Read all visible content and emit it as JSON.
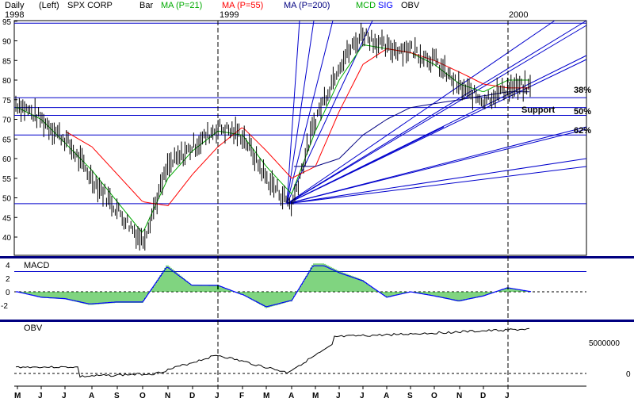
{
  "header": {
    "period": "Daily",
    "scale": "(Left)",
    "symbol": "SPX CORP",
    "chart_style": "Bar",
    "ma1": "MA (P=21)",
    "ma2": "MA (P=55)",
    "ma3": "MA (P=200)",
    "macd": "MCD",
    "sig": "SIG",
    "obv": "OBV",
    "year_1998": "1998",
    "year_1999": "1999",
    "year_2000": "2000"
  },
  "colors": {
    "ma1": "#00aa00",
    "ma2": "#ff0000",
    "ma3": "#000080",
    "line": "#0000cc",
    "macd_bar": "#00aa00",
    "macd_line": "#0000ff",
    "sep": "#000080",
    "price": "#000000"
  },
  "price_panel": {
    "y_ticks": [
      "95",
      "90",
      "85",
      "80",
      "75",
      "70",
      "65",
      "60",
      "55",
      "50",
      "45",
      "40"
    ],
    "fib_labels": [
      "38%",
      "50%",
      "62%"
    ],
    "support_label": "Support"
  },
  "macd_panel": {
    "title": "MACD",
    "y_ticks": [
      "4",
      "2",
      "0",
      "-2"
    ]
  },
  "obv_panel": {
    "title": "OBV",
    "y_ticks": [
      "5000000",
      "0"
    ]
  },
  "x_axis": {
    "months": [
      "M",
      "J",
      "J",
      "A",
      "S",
      "O",
      "N",
      "D",
      "J",
      "F",
      "M",
      "A",
      "M",
      "J",
      "J",
      "A",
      "S",
      "O",
      "N",
      "D",
      "J"
    ]
  },
  "chart_data": {
    "type": "line",
    "title": "SPX CORP",
    "x": [
      "1998-05",
      "1998-06",
      "1998-07",
      "1998-08",
      "1998-09",
      "1998-10",
      "1998-11",
      "1998-12",
      "1999-01",
      "1999-02",
      "1999-03",
      "1999-04",
      "1999-05",
      "1999-06",
      "1999-07",
      "1999-08",
      "1999-09",
      "1999-10",
      "1999-11",
      "1999-12",
      "2000-01"
    ],
    "series": [
      {
        "name": "SPX CORP",
        "values": [
          74,
          70,
          65,
          55,
          47,
          39,
          58,
          63,
          68,
          66,
          55,
          48,
          70,
          84,
          92,
          88,
          88,
          85,
          78,
          75,
          78
        ]
      },
      {
        "name": "MA (P=21)",
        "values": [
          73,
          70,
          64,
          57,
          49,
          41,
          55,
          62,
          67,
          66,
          58,
          51,
          67,
          80,
          89,
          88,
          87,
          84,
          79,
          77,
          80
        ]
      },
      {
        "name": "MA (P=55)",
        "values": [
          null,
          null,
          67,
          63,
          56,
          49,
          48,
          56,
          63,
          68,
          62,
          55,
          58,
          72,
          84,
          88,
          87,
          85,
          82,
          79,
          78
        ]
      },
      {
        "name": "MA (P=200)",
        "values": [
          null,
          null,
          null,
          null,
          null,
          null,
          null,
          null,
          null,
          null,
          null,
          58,
          58,
          60,
          66,
          70,
          73,
          74,
          75,
          76,
          77
        ]
      }
    ],
    "horizontal_levels": [
      94.5,
      75.5,
      73,
      71,
      66,
      48.5
    ],
    "ylim": [
      35,
      97
    ],
    "macd": {
      "ylim": [
        -3,
        4.5
      ]
    },
    "obv": {
      "ticks": [
        0,
        5000000
      ]
    }
  }
}
